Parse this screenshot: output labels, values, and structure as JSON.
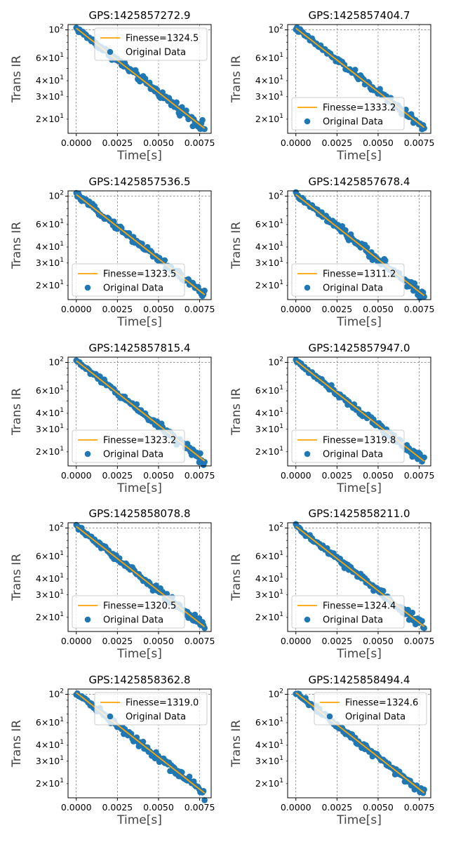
{
  "chart_data": [
    {
      "type": "scatter",
      "title": "GPS:1425857272.9",
      "xlabel": "Time[s]",
      "ylabel": "Trans IR",
      "xlim": [
        -0.0005,
        0.0082
      ],
      "ylim": [
        15.5,
        110
      ],
      "yscale": "log",
      "grid": true,
      "legend": "upper right",
      "fit_label": "Finesse=1324.5",
      "data_label": "Original Data",
      "x_ticks": [
        "0.0000",
        "0.0025",
        "0.0050",
        "0.0075"
      ],
      "y_ticks": [
        {
          "base": "2",
          "exp": "1",
          "value": 20
        },
        {
          "base": "3",
          "exp": "1",
          "value": 30
        },
        {
          "base": "4",
          "exp": "1",
          "value": 40
        },
        {
          "base": "6",
          "exp": "1",
          "value": 60
        },
        {
          "base": "10",
          "exp": "2",
          "value": 100
        }
      ],
      "fit": {
        "y0": 103,
        "tau": 0.00432
      },
      "points": {
        "n": 120,
        "t_end": 0.0078,
        "noise": 0.045
      }
    },
    {
      "type": "scatter",
      "title": "GPS:1425857404.7",
      "xlabel": "Time[s]",
      "ylabel": "Trans IR",
      "xlim": [
        -0.0005,
        0.0082
      ],
      "ylim": [
        15.5,
        110
      ],
      "yscale": "log",
      "grid": true,
      "legend": "lower left",
      "fit_label": "Finesse=1333.2",
      "data_label": "Original Data",
      "x_ticks": [
        "0.0000",
        "0.0025",
        "0.0050",
        "0.0075"
      ],
      "y_ticks": [
        {
          "base": "2",
          "exp": "1",
          "value": 20
        },
        {
          "base": "3",
          "exp": "1",
          "value": 30
        },
        {
          "base": "4",
          "exp": "1",
          "value": 40
        },
        {
          "base": "6",
          "exp": "1",
          "value": 60
        },
        {
          "base": "10",
          "exp": "2",
          "value": 100
        }
      ],
      "fit": {
        "y0": 103,
        "tau": 0.00436
      },
      "points": {
        "n": 120,
        "t_end": 0.0078,
        "noise": 0.04
      }
    },
    {
      "type": "scatter",
      "title": "GPS:1425857536.5",
      "xlabel": "Time[s]",
      "ylabel": "Trans IR",
      "xlim": [
        -0.0005,
        0.0082
      ],
      "ylim": [
        15.5,
        110
      ],
      "yscale": "log",
      "grid": true,
      "legend": "lower left",
      "fit_label": "Finesse=1323.5",
      "data_label": "Original Data",
      "x_ticks": [
        "0.0000",
        "0.0025",
        "0.0050",
        "0.0075"
      ],
      "y_ticks": [
        {
          "base": "2",
          "exp": "1",
          "value": 20
        },
        {
          "base": "3",
          "exp": "1",
          "value": 30
        },
        {
          "base": "4",
          "exp": "1",
          "value": 40
        },
        {
          "base": "6",
          "exp": "1",
          "value": 60
        },
        {
          "base": "10",
          "exp": "2",
          "value": 100
        }
      ],
      "fit": {
        "y0": 103,
        "tau": 0.00432
      },
      "points": {
        "n": 120,
        "t_end": 0.0078,
        "noise": 0.04
      }
    },
    {
      "type": "scatter",
      "title": "GPS:1425857678.4",
      "xlabel": "Time[s]",
      "ylabel": "Trans IR",
      "xlim": [
        -0.0005,
        0.0082
      ],
      "ylim": [
        15.5,
        110
      ],
      "yscale": "log",
      "grid": true,
      "legend": "lower left",
      "fit_label": "Finesse=1311.2",
      "data_label": "Original Data",
      "x_ticks": [
        "0.0000",
        "0.0025",
        "0.0050",
        "0.0075"
      ],
      "y_ticks": [
        {
          "base": "2",
          "exp": "1",
          "value": 20
        },
        {
          "base": "3",
          "exp": "1",
          "value": 30
        },
        {
          "base": "4",
          "exp": "1",
          "value": 40
        },
        {
          "base": "6",
          "exp": "1",
          "value": 60
        },
        {
          "base": "10",
          "exp": "2",
          "value": 100
        }
      ],
      "fit": {
        "y0": 103,
        "tau": 0.00428
      },
      "points": {
        "n": 120,
        "t_end": 0.0078,
        "noise": 0.045
      }
    },
    {
      "type": "scatter",
      "title": "GPS:1425857815.4",
      "xlabel": "Time[s]",
      "ylabel": "Trans IR",
      "xlim": [
        -0.0005,
        0.0082
      ],
      "ylim": [
        15.5,
        110
      ],
      "yscale": "log",
      "grid": true,
      "legend": "lower left",
      "fit_label": "Finesse=1323.2",
      "data_label": "Original Data",
      "x_ticks": [
        "0.0000",
        "0.0025",
        "0.0050",
        "0.0075"
      ],
      "y_ticks": [
        {
          "base": "2",
          "exp": "1",
          "value": 20
        },
        {
          "base": "3",
          "exp": "1",
          "value": 30
        },
        {
          "base": "4",
          "exp": "1",
          "value": 40
        },
        {
          "base": "6",
          "exp": "1",
          "value": 60
        },
        {
          "base": "10",
          "exp": "2",
          "value": 100
        }
      ],
      "fit": {
        "y0": 103,
        "tau": 0.00432
      },
      "points": {
        "n": 120,
        "t_end": 0.0078,
        "noise": 0.04
      }
    },
    {
      "type": "scatter",
      "title": "GPS:1425857947.0",
      "xlabel": "Time[s]",
      "ylabel": "Trans IR",
      "xlim": [
        -0.0005,
        0.0082
      ],
      "ylim": [
        15.5,
        110
      ],
      "yscale": "log",
      "grid": true,
      "legend": "lower left",
      "fit_label": "Finesse=1319.8",
      "data_label": "Original Data",
      "x_ticks": [
        "0.0000",
        "0.0025",
        "0.0050",
        "0.0075"
      ],
      "y_ticks": [
        {
          "base": "2",
          "exp": "1",
          "value": 20
        },
        {
          "base": "3",
          "exp": "1",
          "value": 30
        },
        {
          "base": "4",
          "exp": "1",
          "value": 40
        },
        {
          "base": "6",
          "exp": "1",
          "value": 60
        },
        {
          "base": "10",
          "exp": "2",
          "value": 100
        }
      ],
      "fit": {
        "y0": 103,
        "tau": 0.00431
      },
      "points": {
        "n": 120,
        "t_end": 0.0078,
        "noise": 0.04
      }
    },
    {
      "type": "scatter",
      "title": "GPS:1425858078.8",
      "xlabel": "Time[s]",
      "ylabel": "Trans IR",
      "xlim": [
        -0.0005,
        0.0082
      ],
      "ylim": [
        15.5,
        110
      ],
      "yscale": "log",
      "grid": true,
      "legend": "lower left",
      "fit_label": "Finesse=1320.5",
      "data_label": "Original Data",
      "x_ticks": [
        "0.0000",
        "0.0025",
        "0.0050",
        "0.0075"
      ],
      "y_ticks": [
        {
          "base": "2",
          "exp": "1",
          "value": 20
        },
        {
          "base": "3",
          "exp": "1",
          "value": 30
        },
        {
          "base": "4",
          "exp": "1",
          "value": 40
        },
        {
          "base": "6",
          "exp": "1",
          "value": 60
        },
        {
          "base": "10",
          "exp": "2",
          "value": 100
        }
      ],
      "fit": {
        "y0": 103,
        "tau": 0.00431
      },
      "points": {
        "n": 120,
        "t_end": 0.0078,
        "noise": 0.04
      }
    },
    {
      "type": "scatter",
      "title": "GPS:1425858211.0",
      "xlabel": "Time[s]",
      "ylabel": "Trans IR",
      "xlim": [
        -0.0005,
        0.0082
      ],
      "ylim": [
        15.5,
        110
      ],
      "yscale": "log",
      "grid": true,
      "legend": "lower left",
      "fit_label": "Finesse=1324.4",
      "data_label": "Original Data",
      "x_ticks": [
        "0.0000",
        "0.0025",
        "0.0050",
        "0.0075"
      ],
      "y_ticks": [
        {
          "base": "2",
          "exp": "1",
          "value": 20
        },
        {
          "base": "3",
          "exp": "1",
          "value": 30
        },
        {
          "base": "4",
          "exp": "1",
          "value": 40
        },
        {
          "base": "6",
          "exp": "1",
          "value": 60
        },
        {
          "base": "10",
          "exp": "2",
          "value": 100
        }
      ],
      "fit": {
        "y0": 103,
        "tau": 0.00432
      },
      "points": {
        "n": 120,
        "t_end": 0.0078,
        "noise": 0.045
      }
    },
    {
      "type": "scatter",
      "title": "GPS:1425858362.8",
      "xlabel": "Time[s]",
      "ylabel": "Trans IR",
      "xlim": [
        -0.0005,
        0.0082
      ],
      "ylim": [
        15.5,
        110
      ],
      "yscale": "log",
      "grid": true,
      "legend": "upper right",
      "fit_label": "Finesse=1319.0",
      "data_label": "Original Data",
      "x_ticks": [
        "0.0000",
        "0.0025",
        "0.0050",
        "0.0075"
      ],
      "y_ticks": [
        {
          "base": "2",
          "exp": "1",
          "value": 20
        },
        {
          "base": "3",
          "exp": "1",
          "value": 30
        },
        {
          "base": "4",
          "exp": "1",
          "value": 40
        },
        {
          "base": "6",
          "exp": "1",
          "value": 60
        },
        {
          "base": "10",
          "exp": "2",
          "value": 100
        }
      ],
      "fit": {
        "y0": 103,
        "tau": 0.00431
      },
      "points": {
        "n": 120,
        "t_end": 0.0078,
        "noise": 0.045
      }
    },
    {
      "type": "scatter",
      "title": "GPS:1425858494.4",
      "xlabel": "Time[s]",
      "ylabel": "Trans IR",
      "xlim": [
        -0.0005,
        0.0082
      ],
      "ylim": [
        15.5,
        110
      ],
      "yscale": "log",
      "grid": true,
      "legend": "upper right",
      "fit_label": "Finesse=1324.6",
      "data_label": "Original Data",
      "x_ticks": [
        "0.0000",
        "0.0025",
        "0.0050",
        "0.0075"
      ],
      "y_ticks": [
        {
          "base": "2",
          "exp": "1",
          "value": 20
        },
        {
          "base": "3",
          "exp": "1",
          "value": 30
        },
        {
          "base": "4",
          "exp": "1",
          "value": 40
        },
        {
          "base": "6",
          "exp": "1",
          "value": 60
        },
        {
          "base": "10",
          "exp": "2",
          "value": 100
        }
      ],
      "fit": {
        "y0": 103,
        "tau": 0.00432
      },
      "points": {
        "n": 120,
        "t_end": 0.0078,
        "noise": 0.04
      }
    }
  ],
  "colors": {
    "data": "#1f77b4",
    "fit": "#ffa500",
    "grid": "#555555",
    "axis": "#000000"
  }
}
